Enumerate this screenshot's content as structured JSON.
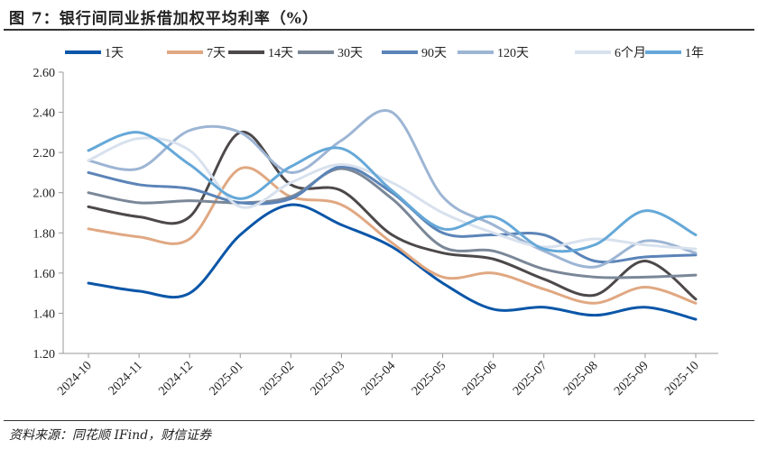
{
  "title": "图 7：银行间同业拆借加权平均利率（%）",
  "source": "资料来源：同花顺 IFind，财信证券",
  "chart_data": {
    "type": "line",
    "title": "银行间同业拆借加权平均利率（%）",
    "xlabel": "",
    "ylabel": "",
    "categories": [
      "2024-10",
      "2024-11",
      "2024-12",
      "2025-01",
      "2025-02",
      "2025-03",
      "2025-04",
      "2025-05",
      "2025-06",
      "2025-07",
      "2025-08",
      "2025-09",
      "2025-10"
    ],
    "ylim": [
      1.2,
      2.6
    ],
    "yticks": [
      "1.20",
      "1.40",
      "1.60",
      "1.80",
      "2.00",
      "2.20",
      "2.40",
      "2.60"
    ],
    "grid": false,
    "legend": "top",
    "series": [
      {
        "name": "1天",
        "color": "#0a56a8",
        "values": [
          1.55,
          1.51,
          1.5,
          1.79,
          1.94,
          1.84,
          1.73,
          1.55,
          1.42,
          1.43,
          1.39,
          1.43,
          1.37
        ]
      },
      {
        "name": "7天",
        "color": "#e0a882",
        "values": [
          1.82,
          1.78,
          1.77,
          2.12,
          1.98,
          1.94,
          1.75,
          1.58,
          1.6,
          1.52,
          1.45,
          1.53,
          1.45
        ]
      },
      {
        "name": "14天",
        "color": "#4d4849",
        "values": [
          1.93,
          1.88,
          1.88,
          2.3,
          2.04,
          2.01,
          1.79,
          1.7,
          1.67,
          1.57,
          1.49,
          1.66,
          1.47
        ]
      },
      {
        "name": "30天",
        "color": "#7a8798",
        "values": [
          2.0,
          1.95,
          1.96,
          1.95,
          1.98,
          2.12,
          1.97,
          1.73,
          1.71,
          1.62,
          1.58,
          1.58,
          1.59
        ]
      },
      {
        "name": "90天",
        "color": "#5b84b8",
        "values": [
          2.1,
          2.04,
          2.02,
          1.95,
          1.97,
          2.13,
          2.0,
          1.8,
          1.79,
          1.79,
          1.66,
          1.68,
          1.69
        ]
      },
      {
        "name": "120天",
        "color": "#9db5d4",
        "values": [
          2.16,
          2.12,
          2.31,
          2.3,
          2.1,
          2.26,
          2.4,
          1.98,
          1.84,
          1.71,
          1.63,
          1.76,
          1.7
        ]
      },
      {
        "name": "6个月",
        "color": "#d8e1ee",
        "values": [
          2.16,
          2.27,
          2.21,
          1.93,
          2.05,
          2.14,
          2.05,
          1.9,
          1.8,
          1.73,
          1.77,
          1.74,
          1.72
        ]
      },
      {
        "name": "1年",
        "color": "#65a8d8",
        "values": [
          2.21,
          2.3,
          2.14,
          1.97,
          2.13,
          2.22,
          2.01,
          1.82,
          1.88,
          1.72,
          1.74,
          1.91,
          1.79
        ]
      }
    ]
  }
}
